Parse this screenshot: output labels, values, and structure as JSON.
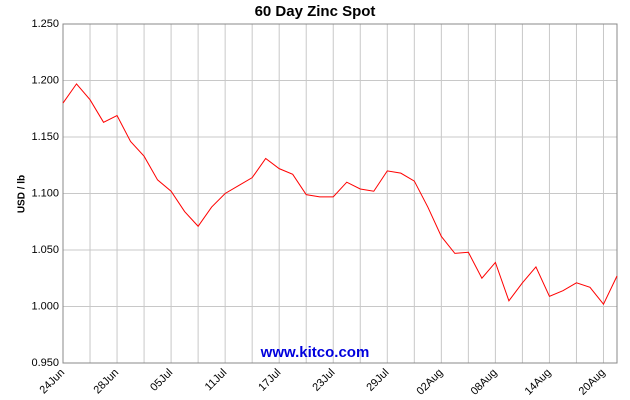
{
  "chart_data": {
    "type": "line",
    "title": "60 Day Zinc Spot",
    "y_label": "USD / lb",
    "annotation": "www.kitco.com",
    "categories": [
      "24Jun",
      null,
      null,
      null,
      "28Jun",
      null,
      null,
      null,
      "05Jul",
      null,
      null,
      null,
      "11Jul",
      null,
      null,
      null,
      "17Jul",
      null,
      null,
      null,
      "23Jul",
      null,
      null,
      null,
      "29Jul",
      null,
      null,
      null,
      "02Aug",
      null,
      null,
      null,
      "08Aug",
      null,
      null,
      null,
      "14Aug",
      null,
      null,
      null,
      "20Aug",
      null
    ],
    "series": [
      {
        "name": "Zinc",
        "color": "#ff0000",
        "values": [
          1.18,
          1.197,
          1.183,
          1.163,
          1.169,
          1.146,
          1.133,
          1.112,
          1.102,
          1.084,
          1.071,
          1.088,
          1.1,
          1.107,
          1.114,
          1.131,
          1.122,
          1.117,
          1.099,
          1.097,
          1.097,
          1.11,
          1.104,
          1.102,
          1.12,
          1.118,
          1.111,
          1.088,
          1.062,
          1.047,
          1.048,
          1.025,
          1.039,
          1.005,
          1.021,
          1.035,
          1.009,
          1.014,
          1.021,
          1.017,
          1.002,
          1.027
        ]
      }
    ],
    "ylim": [
      0.95,
      1.25
    ],
    "yticks": [
      {
        "value": 0.95,
        "label": "0.950"
      },
      {
        "value": 1.0,
        "label": "1.000"
      },
      {
        "value": 1.05,
        "label": "1.050"
      },
      {
        "value": 1.1,
        "label": "1.100"
      },
      {
        "value": 1.15,
        "label": "1.150"
      },
      {
        "value": 1.2,
        "label": "1.200"
      },
      {
        "value": 1.25,
        "label": "1.250"
      }
    ],
    "grid": true
  }
}
